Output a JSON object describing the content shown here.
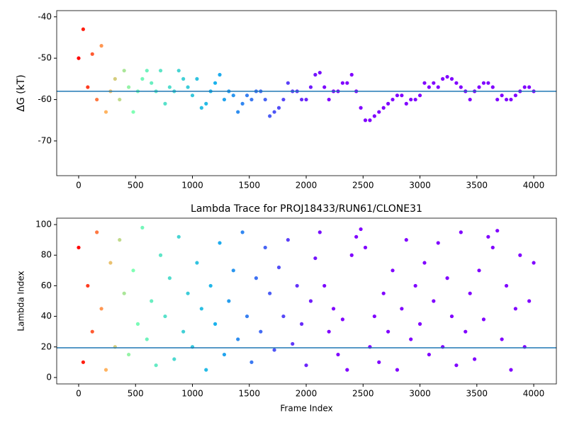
{
  "chart_data": [
    {
      "type": "scatter",
      "ylabel": "ΔG (kT)",
      "x": [
        0,
        40,
        80,
        120,
        160,
        200,
        240,
        280,
        320,
        360,
        400,
        440,
        480,
        520,
        560,
        600,
        640,
        680,
        720,
        760,
        800,
        840,
        880,
        920,
        960,
        1000,
        1040,
        1080,
        1120,
        1160,
        1200,
        1240,
        1280,
        1320,
        1360,
        1400,
        1440,
        1480,
        1520,
        1560,
        1600,
        1640,
        1680,
        1720,
        1760,
        1800,
        1840,
        1880,
        1920,
        1960,
        2000,
        2040,
        2080,
        2120,
        2160,
        2200,
        2240,
        2280,
        2320,
        2360,
        2400,
        2440,
        2480,
        2520,
        2560,
        2600,
        2640,
        2680,
        2720,
        2760,
        2800,
        2840,
        2880,
        2920,
        2960,
        3000,
        3040,
        3080,
        3120,
        3160,
        3200,
        3240,
        3280,
        3320,
        3360,
        3400,
        3440,
        3480,
        3520,
        3560,
        3600,
        3640,
        3680,
        3720,
        3760,
        3800,
        3840,
        3880,
        3920,
        3960,
        4000
      ],
      "values": [
        -50,
        -43,
        -57,
        -49,
        -60,
        -47,
        -63,
        -58,
        -55,
        -60,
        -53,
        -57,
        -63,
        -58,
        -55,
        -53,
        -56,
        -58,
        -53,
        -61,
        -57,
        -58,
        -53,
        -55,
        -57,
        -59,
        -55,
        -62,
        -61,
        -58,
        -56,
        -54,
        -60,
        -58,
        -59,
        -63,
        -61,
        -59,
        -60,
        -58,
        -58,
        -60,
        -64,
        -63,
        -62,
        -60,
        -56,
        -58,
        -58,
        -60,
        -60,
        -57,
        -54,
        -53.5,
        -57,
        -60,
        -58,
        -58,
        -56,
        -56,
        -54,
        -58,
        -62,
        -65,
        -65,
        -64,
        -63,
        -62,
        -61,
        -60,
        -59,
        -59,
        -61,
        -60,
        -60,
        -59,
        -56,
        -57,
        -56,
        -57,
        -55,
        -54.5,
        -55,
        -56,
        -57,
        -58,
        -60,
        -58,
        -57,
        -56,
        -56,
        -57,
        -60,
        -59,
        -60,
        -60,
        -59,
        -58,
        -57,
        -57,
        -58
      ],
      "xlim": [
        -193,
        4199
      ],
      "ylim": [
        -78.4,
        -38.5
      ],
      "xticks": [
        0,
        500,
        1000,
        1500,
        2000,
        2500,
        3000,
        3500,
        4000
      ],
      "yticks": [
        -70,
        -60,
        -50,
        -40
      ],
      "hline": -58,
      "hline_color": "#1f77b4",
      "colormap": [
        {
          "at": 0,
          "color": "#ff0000"
        },
        {
          "at": 0.06,
          "color": "#ffb461"
        },
        {
          "at": 0.12,
          "color": "#80ffb4"
        },
        {
          "at": 0.3,
          "color": "#1ab2ec"
        },
        {
          "at": 0.55,
          "color": "#8000ff"
        },
        {
          "at": 1,
          "color": "#8000ff"
        }
      ]
    },
    {
      "type": "scatter",
      "title": "Lambda Trace for PROJ18433/RUN61/CLONE31",
      "xlabel": "Frame Index",
      "ylabel": "Lambda Index",
      "x": [
        0,
        40,
        80,
        120,
        160,
        200,
        240,
        280,
        320,
        360,
        400,
        440,
        480,
        520,
        560,
        600,
        640,
        680,
        720,
        760,
        800,
        840,
        880,
        920,
        960,
        1000,
        1040,
        1080,
        1120,
        1160,
        1200,
        1240,
        1280,
        1320,
        1360,
        1400,
        1440,
        1480,
        1520,
        1560,
        1600,
        1640,
        1680,
        1720,
        1760,
        1800,
        1840,
        1880,
        1920,
        1960,
        2000,
        2040,
        2080,
        2120,
        2160,
        2200,
        2240,
        2280,
        2320,
        2360,
        2400,
        2440,
        2480,
        2520,
        2560,
        2600,
        2640,
        2680,
        2720,
        2760,
        2800,
        2840,
        2880,
        2920,
        2960,
        3000,
        3040,
        3080,
        3120,
        3160,
        3200,
        3240,
        3280,
        3320,
        3360,
        3400,
        3440,
        3480,
        3520,
        3560,
        3600,
        3640,
        3680,
        3720,
        3760,
        3800,
        3840,
        3880,
        3920,
        3960,
        4000
      ],
      "values": [
        85,
        10,
        60,
        30,
        95,
        45,
        5,
        75,
        20,
        90,
        55,
        15,
        70,
        35,
        98,
        25,
        50,
        8,
        80,
        40,
        65,
        12,
        92,
        30,
        55,
        20,
        75,
        45,
        5,
        60,
        35,
        88,
        15,
        50,
        70,
        25,
        95,
        40,
        10,
        65,
        30,
        85,
        55,
        18,
        72,
        40,
        90,
        22,
        60,
        35,
        8,
        50,
        78,
        95,
        60,
        30,
        45,
        15,
        38,
        5,
        80,
        92,
        97,
        85,
        20,
        40,
        10,
        55,
        30,
        70,
        5,
        45,
        90,
        25,
        60,
        35,
        75,
        15,
        50,
        88,
        20,
        65,
        40,
        8,
        95,
        30,
        55,
        12,
        70,
        38,
        92,
        85,
        96,
        25,
        60,
        5,
        45,
        80,
        20,
        50,
        75
      ],
      "xlim": [
        -193,
        4199
      ],
      "ylim": [
        -4.2,
        104.2
      ],
      "xticks": [
        0,
        500,
        1000,
        1500,
        2000,
        2500,
        3000,
        3500,
        4000
      ],
      "yticks": [
        0,
        20,
        40,
        60,
        80,
        100
      ],
      "hline": 19.4,
      "hline_color": "#1f77b4",
      "colormap": [
        {
          "at": 0,
          "color": "#ff0000"
        },
        {
          "at": 0.06,
          "color": "#ffb461"
        },
        {
          "at": 0.12,
          "color": "#80ffb4"
        },
        {
          "at": 0.3,
          "color": "#1ab2ec"
        },
        {
          "at": 0.55,
          "color": "#8000ff"
        },
        {
          "at": 1,
          "color": "#8000ff"
        }
      ]
    }
  ]
}
